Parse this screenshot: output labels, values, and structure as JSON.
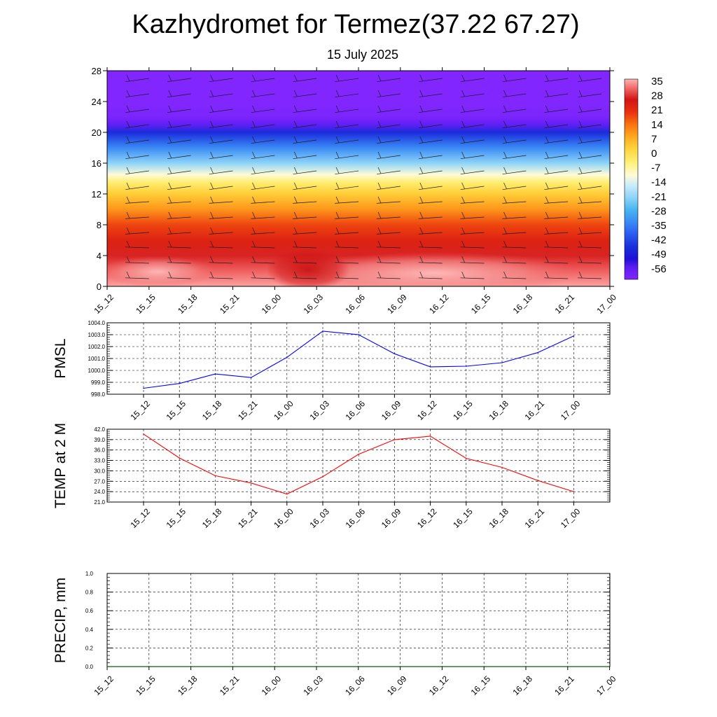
{
  "title": "Kazhydromet for Termez(37.22 67.27)",
  "subtitle": "15 July 2025",
  "time_labels": [
    "15_12",
    "15_15",
    "15_18",
    "15_21",
    "16_00",
    "16_03",
    "16_06",
    "16_09",
    "16_12",
    "16_15",
    "16_18",
    "16_21",
    "17_00"
  ],
  "colors": {
    "pmsl_line": "#0000ff",
    "temp_line": "#ff0000",
    "precip_line": "#006400",
    "grid": "#000000"
  },
  "chart_data": [
    {
      "type": "heatmap",
      "id": "meteogram",
      "x_categories": [
        "15_12",
        "15_15",
        "15_18",
        "15_21",
        "16_00",
        "16_03",
        "16_06",
        "16_09",
        "16_12",
        "16_15",
        "16_18",
        "16_21",
        "17_00"
      ],
      "y_ticks": [
        0,
        4,
        8,
        12,
        16,
        20,
        24,
        28
      ],
      "ylim": [
        0,
        28
      ],
      "colorbar": {
        "labels": [
          "35",
          "28",
          "21",
          "14",
          "7",
          "0",
          "-7",
          "-14",
          "-21",
          "-28",
          "-35",
          "-42",
          "-49",
          "-56"
        ],
        "range": [
          -60,
          38
        ],
        "stops": [
          {
            "value": 38,
            "color": "#ffb3b3"
          },
          {
            "value": 33,
            "color": "#f06060"
          },
          {
            "value": 28,
            "color": "#d21414"
          },
          {
            "value": 22,
            "color": "#e83010"
          },
          {
            "value": 16,
            "color": "#fa7010"
          },
          {
            "value": 10,
            "color": "#ffa820"
          },
          {
            "value": 4,
            "color": "#ffd43c"
          },
          {
            "value": -3,
            "color": "#fff27a"
          },
          {
            "value": -9,
            "color": "#fffbd8"
          },
          {
            "value": -14,
            "color": "#c8ecfa"
          },
          {
            "value": -20,
            "color": "#8ed4f8"
          },
          {
            "value": -26,
            "color": "#48b4f0"
          },
          {
            "value": -32,
            "color": "#3a8af5"
          },
          {
            "value": -38,
            "color": "#2a5af0"
          },
          {
            "value": -44,
            "color": "#1a30dc"
          },
          {
            "value": -50,
            "color": "#1e10d8"
          },
          {
            "value": -54,
            "color": "#5a1ef2"
          },
          {
            "value": -60,
            "color": "#8226ff"
          }
        ]
      },
      "temperature_profile": {
        "heights": [
          0,
          2,
          4,
          6,
          8,
          10,
          12,
          13.5,
          14.5,
          16,
          18,
          20,
          21,
          22,
          24,
          28
        ],
        "values": [
          37,
          33,
          29,
          25,
          20,
          12,
          5,
          -2,
          -9,
          -20,
          -32,
          -45,
          -55,
          -59,
          -60,
          -60
        ]
      },
      "wind_barbs": true
    },
    {
      "type": "line",
      "id": "pmsl",
      "ylabel": "PMSL",
      "categories": [
        "15_12",
        "15_15",
        "15_18",
        "15_21",
        "16_00",
        "16_03",
        "16_06",
        "16_09",
        "16_12",
        "16_15",
        "16_18",
        "16_21",
        "17_00"
      ],
      "y_ticks": [
        "998.0",
        "999.0",
        "1000.0",
        "1001.0",
        "1002.0",
        "1003.0",
        "1004.0"
      ],
      "ylim": [
        998.0,
        1004.0
      ],
      "series": [
        {
          "values": [
            998.5,
            998.9,
            999.7,
            999.4,
            1001.1,
            1003.3,
            1003.0,
            1001.4,
            1000.3,
            1000.35,
            1000.65,
            1001.5,
            1002.9
          ]
        }
      ]
    },
    {
      "type": "line",
      "id": "temp2m",
      "ylabel": "TEMP at 2 M",
      "categories": [
        "15_12",
        "15_15",
        "15_18",
        "15_21",
        "16_00",
        "16_03",
        "16_06",
        "16_09",
        "16_12",
        "16_15",
        "16_18",
        "16_21",
        "17_00"
      ],
      "y_ticks": [
        "21.0",
        "24.0",
        "27.0",
        "30.0",
        "33.0",
        "36.0",
        "39.0",
        "42.0"
      ],
      "ylim": [
        21.0,
        42.0
      ],
      "series": [
        {
          "values": [
            40.6,
            33.7,
            28.6,
            26.5,
            23.3,
            28.3,
            34.8,
            39.0,
            40.0,
            33.6,
            31.0,
            27.2,
            24.0
          ]
        }
      ]
    },
    {
      "type": "line",
      "id": "precip",
      "ylabel": "PRECIP, mm",
      "categories": [
        "15_12",
        "15_15",
        "15_18",
        "15_21",
        "16_00",
        "16_03",
        "16_06",
        "16_09",
        "16_12",
        "16_15",
        "16_18",
        "16_21",
        "17_00"
      ],
      "y_ticks": [
        "0.0",
        "0.2",
        "0.4",
        "0.6",
        "0.8",
        "1.0"
      ],
      "ylim": [
        0.0,
        1.0
      ],
      "series": [
        {
          "values": [
            0,
            0,
            0,
            0,
            0,
            0,
            0,
            0,
            0,
            0,
            0,
            0,
            0
          ]
        }
      ]
    }
  ]
}
